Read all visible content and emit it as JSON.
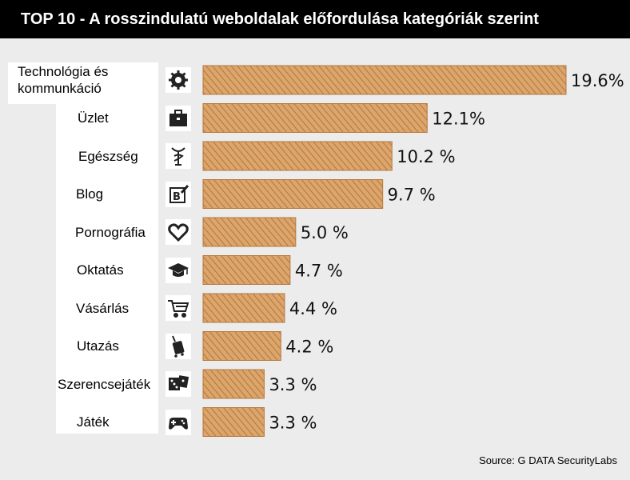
{
  "title": "TOP 10 - A rosszindulatú weboldalak előfordulása kategóriák szerint",
  "source": "Source: G DATA SecurityLabs",
  "colors": {
    "bar": "#d9a066",
    "hatch": "#b5783c",
    "background": "#ececec"
  },
  "chart_data": {
    "type": "bar",
    "orientation": "horizontal",
    "categories": [
      "Technológia és kommunkáció",
      "Üzlet",
      "Egészség",
      "Blog",
      "Pornográfia",
      "Oktatás",
      "Vásárlás",
      "Utazás",
      "Szerencsejáték",
      "Játék"
    ],
    "category_lines": [
      [
        "Technológia és",
        "kommunkáció"
      ],
      [
        "Üzlet"
      ],
      [
        "Egészség"
      ],
      [
        "Blog"
      ],
      [
        "Pornográfia"
      ],
      [
        "Oktatás"
      ],
      [
        "Vásárlás"
      ],
      [
        "Utazás"
      ],
      [
        "Szerencsejáték"
      ],
      [
        "Játék"
      ]
    ],
    "values": [
      19.6,
      12.1,
      10.2,
      9.7,
      5.0,
      4.7,
      4.4,
      4.2,
      3.3,
      3.3
    ],
    "value_labels": [
      "19.6%",
      "12.1%",
      "10.2 %",
      "9.7 %",
      "5.0 %",
      "4.7 %",
      "4.4 %",
      "4.2 %",
      "3.3 %",
      "3.3 %"
    ],
    "icons": [
      "gear-icon",
      "briefcase-icon",
      "caduceus-icon",
      "blog-icon",
      "heart-icon",
      "graduation-cap-icon",
      "shopping-cart-icon",
      "luggage-icon",
      "dice-icon",
      "gamepad-icon"
    ],
    "unit": "%",
    "xlim": [
      0,
      20
    ],
    "grid": false,
    "legend": "none"
  }
}
